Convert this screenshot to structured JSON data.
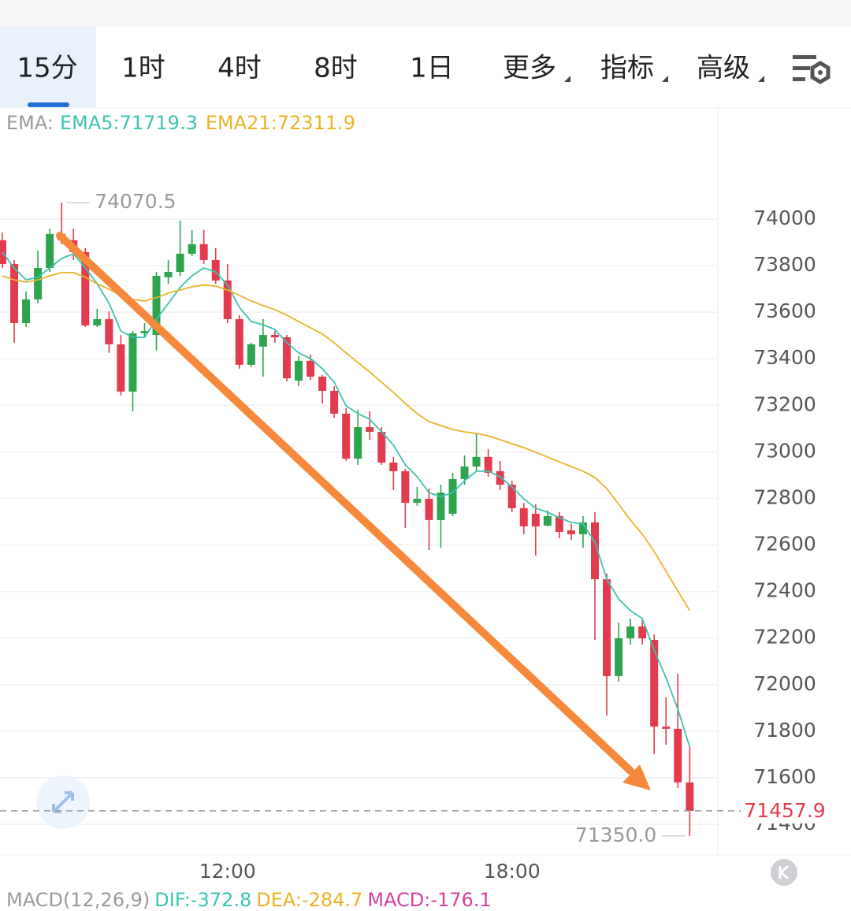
{
  "tabs": [
    "15分",
    "1时",
    "4时",
    "8时",
    "1日",
    "更多",
    "指标",
    "高级"
  ],
  "chart_data": {
    "type": "candlestick",
    "legend": [
      "EMA:",
      "EMA5:71719.3",
      "EMA21:72311.9"
    ],
    "categories": [
      null,
      null,
      null,
      null,
      null,
      null,
      null,
      null,
      null,
      null,
      null,
      null,
      null,
      null,
      null,
      null,
      null,
      null,
      null,
      "12:00",
      null,
      null,
      null,
      null,
      null,
      null,
      null,
      null,
      null,
      null,
      null,
      null,
      null,
      null,
      null,
      null,
      null,
      null,
      null,
      null,
      null,
      null,
      null,
      "18:00",
      null,
      null,
      null,
      null,
      null,
      null,
      null,
      null,
      null,
      null,
      null,
      null,
      null,
      null,
      null
    ],
    "open": [
      73909,
      73807,
      73553,
      73655,
      73790,
      73936,
      73909,
      73858,
      73543,
      73570,
      73462,
      73259,
      73509,
      73502,
      73750,
      73773,
      73851,
      73892,
      73824,
      73736,
      73570,
      73374,
      73452,
      73502,
      73492,
      73306,
      73391,
      73323,
      73262,
      73164,
      72971,
      73106,
      73086,
      72954,
      72917,
      72781,
      72798,
      72707,
      72734,
      72883,
      72937,
      72978,
      72917,
      72859,
      72758,
      72734,
      72683,
      72724,
      72663,
      72646,
      72697,
      72453,
      72037,
      72199,
      72250,
      72192,
      71820,
      71810,
      71580
    ],
    "high": [
      73942,
      73824,
      73689,
      73865,
      73959,
      74070.5,
      73959,
      73875,
      73614,
      73604,
      73502,
      73519,
      73553,
      73773,
      73824,
      73993,
      73953,
      73953,
      73875,
      73807,
      73587,
      73469,
      73570,
      73519,
      73502,
      73411,
      73418,
      73330,
      73282,
      73188,
      73181,
      73174,
      73106,
      72978,
      72927,
      72849,
      72842,
      72859,
      72910,
      72985,
      73079,
      73012,
      72961,
      72876,
      72781,
      72775,
      72748,
      72741,
      72690,
      72724,
      72741,
      72477,
      72267,
      72284,
      72277,
      72216,
      71945,
      72047,
      71732
    ],
    "low": [
      73790,
      73469,
      73536,
      73638,
      73773,
      73892,
      73824,
      73536,
      73536,
      73425,
      73242,
      73174,
      73492,
      73435,
      73722,
      73756,
      73841,
      73807,
      73722,
      73553,
      73357,
      73364,
      73323,
      73469,
      73303,
      73282,
      73309,
      73208,
      73147,
      72961,
      72944,
      73052,
      72944,
      72836,
      72673,
      72768,
      72578,
      72588,
      72724,
      72859,
      72917,
      72893,
      72836,
      72741,
      72646,
      72555,
      72680,
      72629,
      72622,
      72588,
      72192,
      71867,
      72013,
      72172,
      72172,
      71702,
      71742,
      71556,
      71350
    ],
    "close": [
      73807,
      73553,
      73655,
      73790,
      73936,
      73909,
      73858,
      73543,
      73570,
      73462,
      73259,
      73509,
      73519,
      73756,
      73773,
      73851,
      73892,
      73824,
      73736,
      73570,
      73374,
      73462,
      73502,
      73492,
      73316,
      73391,
      73323,
      73262,
      73164,
      72971,
      73106,
      73086,
      72954,
      72917,
      72781,
      72798,
      72707,
      72825,
      72883,
      72937,
      72978,
      72910,
      72859,
      72758,
      72680,
      72680,
      72724,
      72656,
      72646,
      72697,
      72453,
      72037,
      72199,
      72250,
      72199,
      71820,
      71810,
      71580,
      71457.9
    ],
    "up_color": "#2ea44f",
    "down_color": "#e23b4e",
    "series": [
      {
        "color": "#3cc4b0",
        "values": [
          73858,
          73790,
          73739,
          73750,
          73790,
          73831,
          73851,
          73790,
          73722,
          73638,
          73519,
          73492,
          73492,
          73570,
          73638,
          73706,
          73756,
          73790,
          73773,
          73716,
          73621,
          73560,
          73546,
          73526,
          73469,
          73425,
          73401,
          73357,
          73299,
          73198,
          73164,
          73140,
          73086,
          73029,
          72944,
          72893,
          72825,
          72808,
          72825,
          72876,
          72917,
          72917,
          72893,
          72849,
          72798,
          72758,
          72741,
          72717,
          72697,
          72690,
          72612,
          72453,
          72368,
          72318,
          72284,
          72148,
          72030,
          71894,
          71732
        ]
      },
      {
        "color": "#e8b426",
        "values": [
          73756,
          73739,
          73729,
          73739,
          73756,
          73770,
          73770,
          73750,
          73722,
          73699,
          73672,
          73655,
          73648,
          73662,
          73682,
          73695,
          73709,
          73716,
          73712,
          73695,
          73672,
          73648,
          73628,
          73611,
          73587,
          73560,
          73533,
          73506,
          73469,
          73425,
          73384,
          73343,
          73299,
          73255,
          73208,
          73164,
          73130,
          73113,
          73096,
          73086,
          73079,
          73069,
          73052,
          73035,
          73018,
          72998,
          72978,
          72957,
          72937,
          72917,
          72890,
          72842,
          72775,
          72707,
          72646,
          72572,
          72487,
          72402,
          72318
        ]
      }
    ],
    "ylim": [
      71268,
      74467
    ],
    "yticks": [
      71400,
      71600,
      71800,
      72000,
      72200,
      72400,
      72600,
      72800,
      73000,
      73200,
      73400,
      73600,
      73800,
      74000
    ],
    "grid": true,
    "max_label": {
      "value": 74070.5,
      "label": "74070.5"
    },
    "min_label": {
      "value": 71350,
      "label": "71350.0"
    },
    "price_line": {
      "value": 71457.9,
      "label": "71457.9"
    },
    "macd_legend": [
      "MACD(12,26,9)",
      "DIF:-372.8",
      "DEA:-284.7",
      "MACD:-176.1"
    ]
  }
}
